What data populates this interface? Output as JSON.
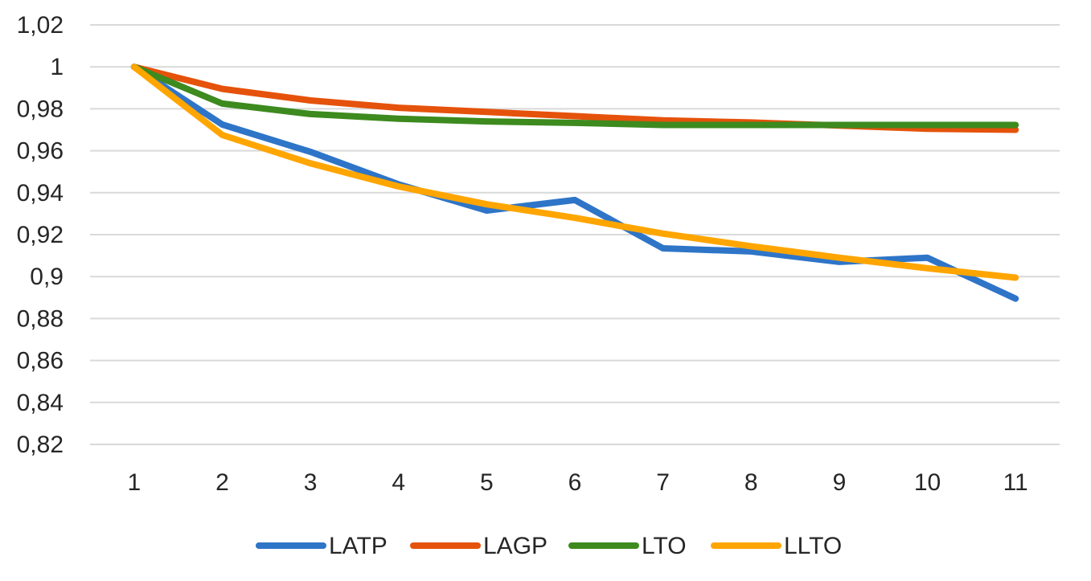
{
  "chart_data": {
    "type": "line",
    "title": "",
    "xlabel": "",
    "ylabel": "",
    "categories": [
      "1",
      "2",
      "3",
      "4",
      "5",
      "6",
      "7",
      "8",
      "9",
      "10",
      "11"
    ],
    "ylim": [
      0.82,
      1.02
    ],
    "yticks": [
      0.82,
      0.84,
      0.86,
      0.88,
      0.9,
      0.92,
      0.94,
      0.96,
      0.98,
      1,
      1.02
    ],
    "ytick_labels": [
      "0,82",
      "0,84",
      "0,86",
      "0,88",
      "0,9",
      "0,92",
      "0,94",
      "0,96",
      "0,98",
      "1",
      "1,02"
    ],
    "grid": true,
    "legend_position": "bottom",
    "series": [
      {
        "name": "LATP",
        "color": "#2E75C8",
        "values": [
          1.0,
          0.9725,
          0.9595,
          0.944,
          0.9315,
          0.9365,
          0.9135,
          0.912,
          0.907,
          0.909,
          0.8895
        ]
      },
      {
        "name": "LAGP",
        "color": "#E5520B",
        "values": [
          1.0,
          0.9895,
          0.984,
          0.9805,
          0.9785,
          0.9765,
          0.9745,
          0.9735,
          0.972,
          0.9705,
          0.97
        ]
      },
      {
        "name": "LTO",
        "color": "#3D8A1F",
        "values": [
          1.0,
          0.9825,
          0.9775,
          0.9753,
          0.974,
          0.9733,
          0.9723,
          0.9723,
          0.9723,
          0.9723,
          0.9723
        ]
      },
      {
        "name": "LLTO",
        "color": "#FFA500",
        "values": [
          1.0,
          0.9675,
          0.954,
          0.943,
          0.9345,
          0.928,
          0.9205,
          0.9145,
          0.909,
          0.904,
          0.8995
        ]
      }
    ]
  }
}
